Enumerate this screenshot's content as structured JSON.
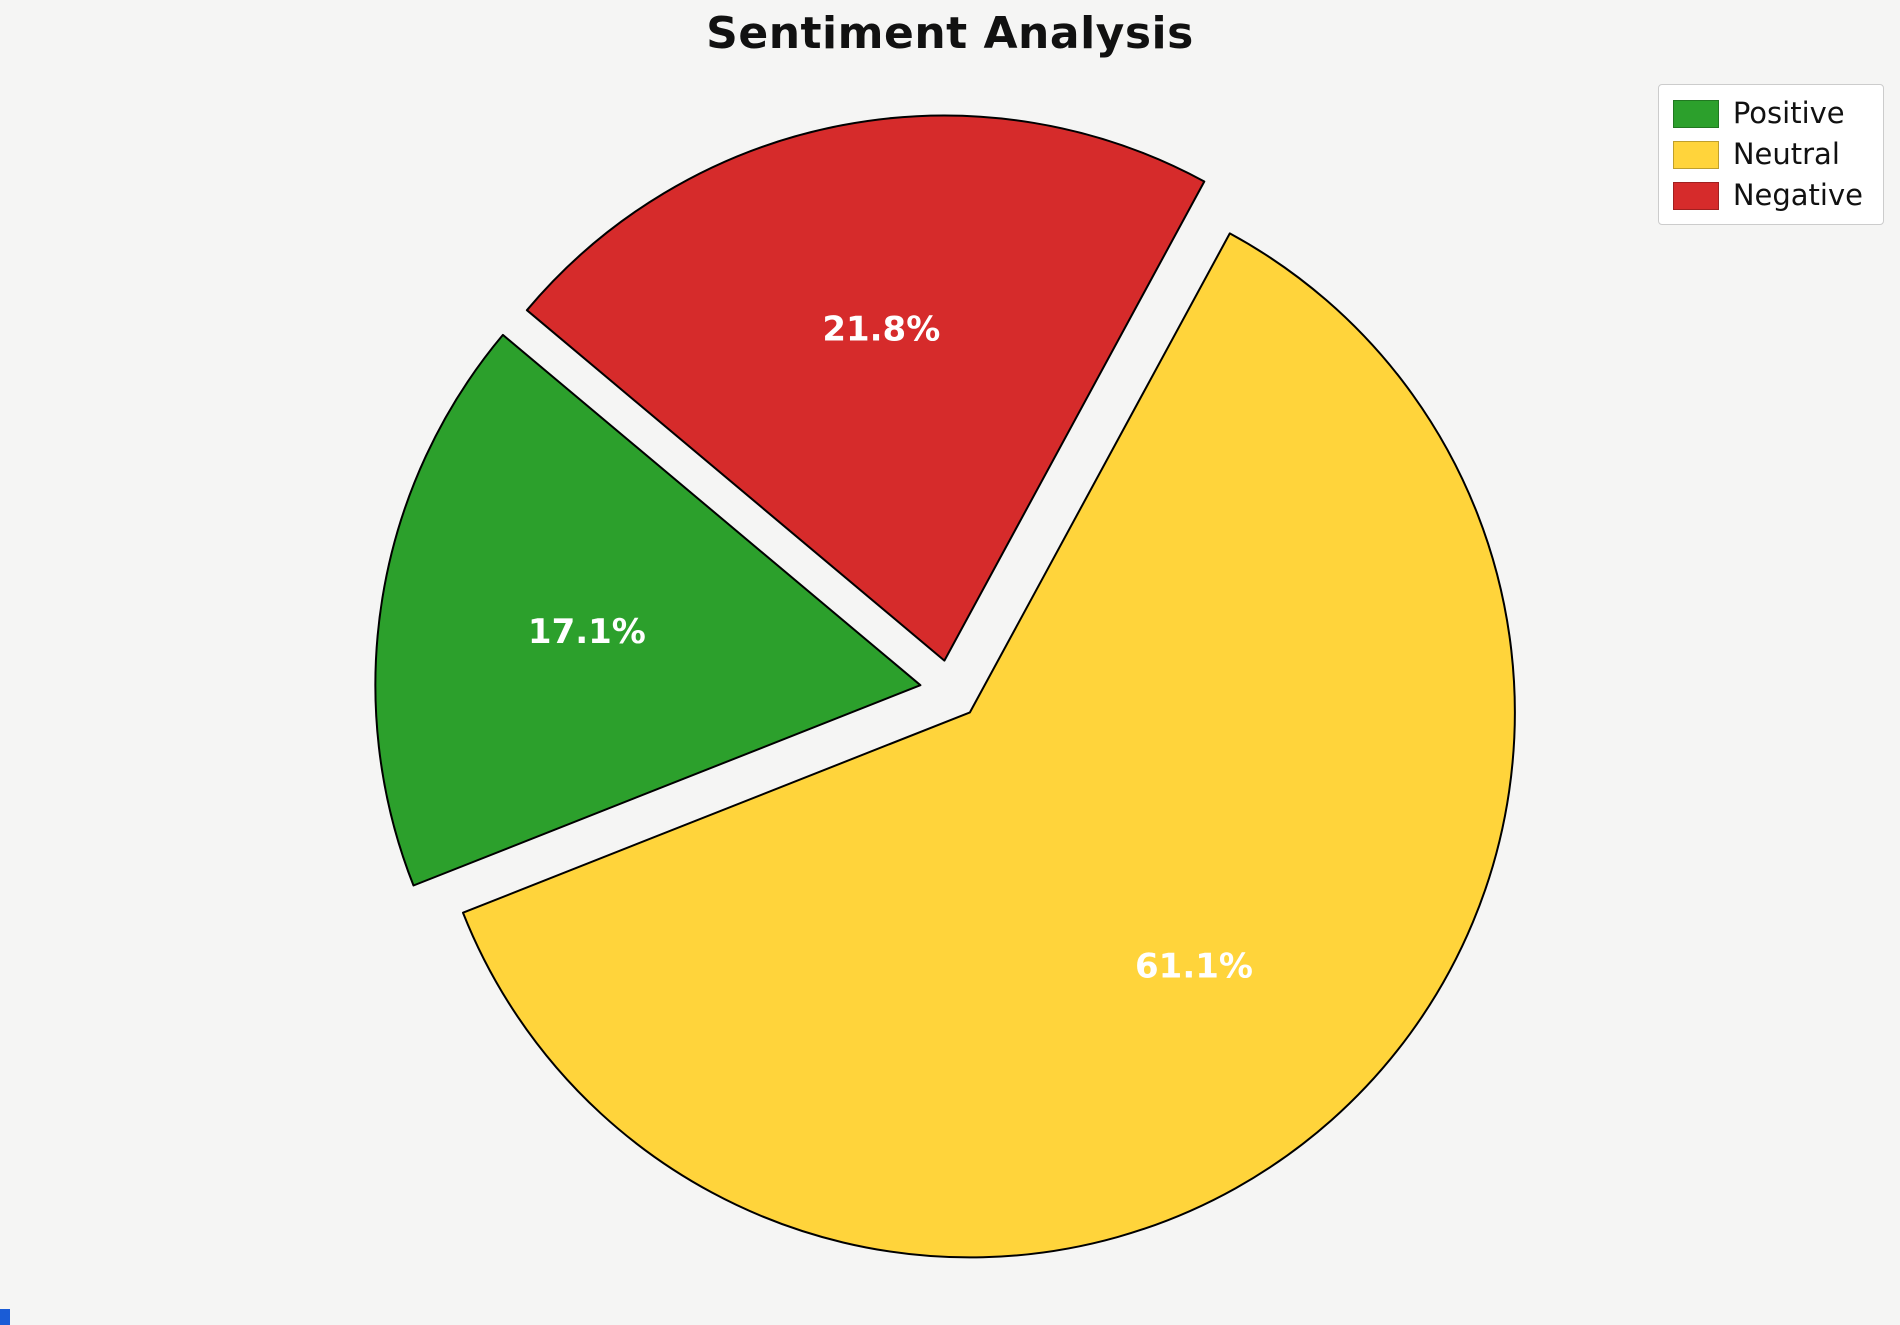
{
  "page": {
    "background": "#f5f5f4",
    "corner_mark_color": "#1a5cd6"
  },
  "chart_data": {
    "type": "pie",
    "title": "Sentiment Analysis",
    "categories": [
      "Positive",
      "Neutral",
      "Negative"
    ],
    "values": [
      17.1,
      61.1,
      21.8
    ],
    "slices": [
      {
        "label": "Positive",
        "value": 17.1,
        "pct_label": "17.1%",
        "color": "#2CA02C"
      },
      {
        "label": "Neutral",
        "value": 61.1,
        "pct_label": "61.1%",
        "color": "#FFD43B"
      },
      {
        "label": "Negative",
        "value": 21.8,
        "pct_label": "21.8%",
        "color": "#D62B2B"
      }
    ],
    "start_angle": 140,
    "counterclock": true,
    "explode": 0.055,
    "pct_distance": 0.62,
    "edge_color": "#000000",
    "pct_label_color": "#ffffff",
    "legend_position": "upper right",
    "legend_entries": [
      "Positive",
      "Neutral",
      "Negative"
    ]
  }
}
